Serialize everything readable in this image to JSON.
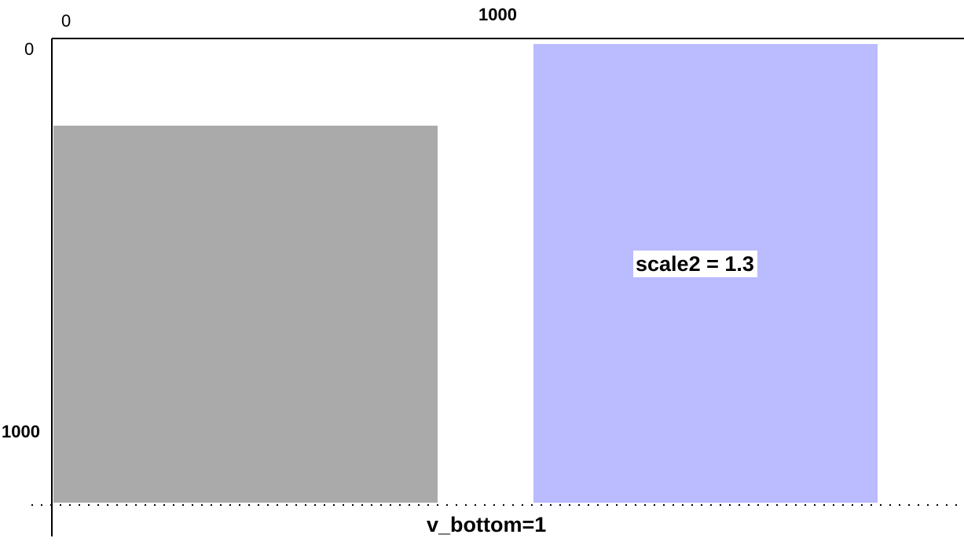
{
  "axes": {
    "x_tick_start": "0",
    "x_tick_end": "1000",
    "y_tick_start": "0",
    "y_tick_end": "1000"
  },
  "rects": {
    "gray": {
      "color": "#aaaaaa"
    },
    "blue": {
      "color": "#bbbbff",
      "label": "scale2 = 1.3"
    }
  },
  "baseline": {
    "label": "v_bottom=1"
  },
  "colors": {
    "axis": "#000000"
  }
}
